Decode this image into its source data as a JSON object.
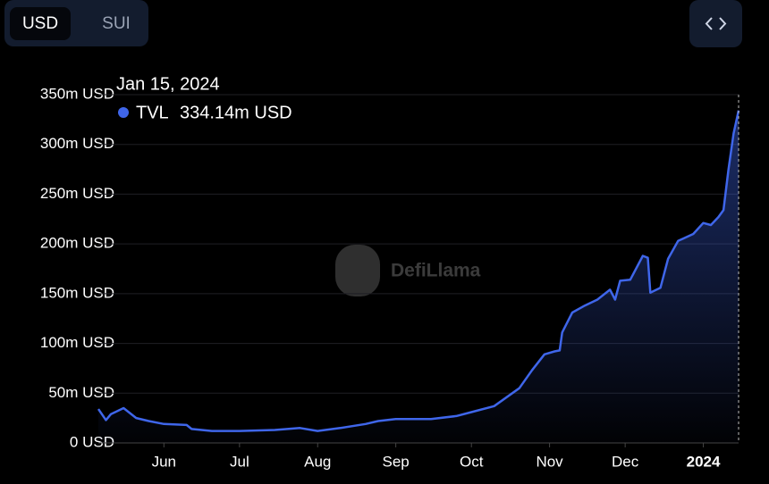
{
  "currency_toggle": {
    "options": [
      "USD",
      "SUI"
    ]
  },
  "watermark": "DefiLlama",
  "tooltip": {
    "date": "Jan 15, 2024",
    "value_label": "334.14m USD"
  },
  "chart_data": {
    "type": "area",
    "x": [
      "2023-05-06",
      "2023-05-09",
      "2023-05-11",
      "2023-05-16",
      "2023-05-21",
      "2023-05-26",
      "2023-06-01",
      "2023-06-10",
      "2023-06-12",
      "2023-06-20",
      "2023-07-01",
      "2023-07-15",
      "2023-07-25",
      "2023-08-01",
      "2023-08-10",
      "2023-08-20",
      "2023-08-25",
      "2023-09-01",
      "2023-09-15",
      "2023-09-25",
      "2023-10-01",
      "2023-10-10",
      "2023-10-20",
      "2023-10-25",
      "2023-10-30",
      "2023-11-03",
      "2023-11-05",
      "2023-11-06",
      "2023-11-10",
      "2023-11-15",
      "2023-11-20",
      "2023-11-25",
      "2023-11-27",
      "2023-11-29",
      "2023-12-03",
      "2023-12-08",
      "2023-12-10",
      "2023-12-11",
      "2023-12-15",
      "2023-12-18",
      "2023-12-22",
      "2023-12-28",
      "2024-01-01",
      "2024-01-04",
      "2024-01-07",
      "2024-01-09",
      "2024-01-11",
      "2024-01-13",
      "2024-01-15"
    ],
    "series": [
      {
        "name": "TVL",
        "color": "#3f66ea",
        "values": [
          34,
          23,
          29,
          35,
          25,
          22,
          19,
          18,
          14,
          12,
          12,
          13,
          15,
          12,
          15,
          19,
          22,
          24,
          24,
          27,
          31,
          37,
          55,
          73,
          89,
          92,
          93,
          111,
          131,
          138,
          144,
          154,
          144,
          163,
          164,
          188,
          186,
          151,
          156,
          185,
          203,
          210,
          221,
          219,
          227,
          234,
          275,
          311,
          334.14
        ]
      }
    ],
    "xlim": [
      "2023-05-06",
      "2024-01-15"
    ],
    "xticks": [
      {
        "value": "2023-06-01",
        "label": "Jun"
      },
      {
        "value": "2023-07-01",
        "label": "Jul"
      },
      {
        "value": "2023-08-01",
        "label": "Aug"
      },
      {
        "value": "2023-09-01",
        "label": "Sep"
      },
      {
        "value": "2023-10-01",
        "label": "Oct"
      },
      {
        "value": "2023-11-01",
        "label": "Nov"
      },
      {
        "value": "2023-12-01",
        "label": "Dec"
      },
      {
        "value": "2024-01-01",
        "label": "2024"
      }
    ],
    "ylim": [
      0,
      350
    ],
    "yticks": [
      {
        "value": 0,
        "label": "0 USD"
      },
      {
        "value": 50,
        "label": "50m USD"
      },
      {
        "value": 100,
        "label": "100m USD"
      },
      {
        "value": 150,
        "label": "150m USD"
      },
      {
        "value": 200,
        "label": "200m USD"
      },
      {
        "value": 250,
        "label": "250m USD"
      },
      {
        "value": 300,
        "label": "300m USD"
      },
      {
        "value": 350,
        "label": "350m USD"
      }
    ],
    "grid": true
  }
}
